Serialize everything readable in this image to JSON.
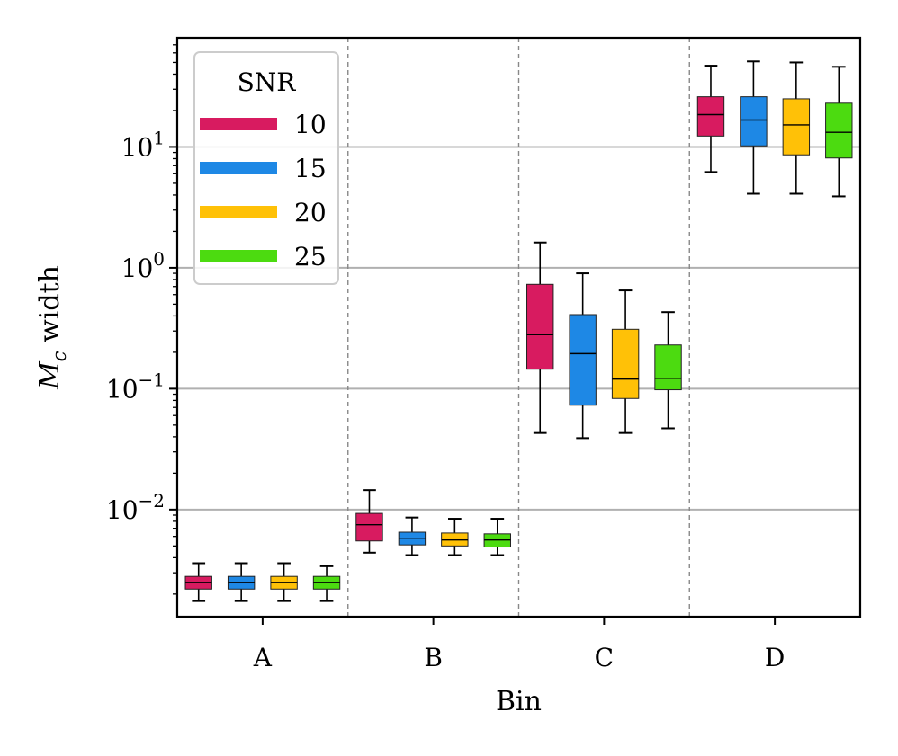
{
  "chart_data": {
    "type": "box",
    "title": "",
    "xlabel": "Bin",
    "ylabel": "M_c width",
    "ylabel_symbol": "M",
    "ylabel_subscript": "c",
    "ylabel_rest": " width",
    "yscale": "log",
    "ylim": [
      0.0013,
      80
    ],
    "categories": [
      "A",
      "B",
      "C",
      "D"
    ],
    "y_ticks": [
      {
        "value": 0.01,
        "base": "10",
        "exp": "−2"
      },
      {
        "value": 0.1,
        "base": "10",
        "exp": "−1"
      },
      {
        "value": 1,
        "base": "10",
        "exp": "0"
      },
      {
        "value": 10,
        "base": "10",
        "exp": "1"
      }
    ],
    "grid": "horizontal-major",
    "legend": {
      "title": "SNR",
      "position": "top-left"
    },
    "series": [
      {
        "name": "10",
        "color": "#d81b60",
        "boxes": [
          {
            "whislo": 0.00175,
            "q1": 0.0022,
            "med": 0.0025,
            "q3": 0.0028,
            "whishi": 0.0036
          },
          {
            "whislo": 0.0044,
            "q1": 0.0055,
            "med": 0.0075,
            "q3": 0.0093,
            "whishi": 0.0145
          },
          {
            "whislo": 0.043,
            "q1": 0.145,
            "med": 0.28,
            "q3": 0.73,
            "whishi": 1.62
          },
          {
            "whislo": 6.2,
            "q1": 12.3,
            "med": 18.5,
            "q3": 26,
            "whishi": 47
          }
        ]
      },
      {
        "name": "15",
        "color": "#1e88e5",
        "boxes": [
          {
            "whislo": 0.00175,
            "q1": 0.0022,
            "med": 0.0025,
            "q3": 0.0028,
            "whishi": 0.0036
          },
          {
            "whislo": 0.0042,
            "q1": 0.0051,
            "med": 0.0058,
            "q3": 0.0065,
            "whishi": 0.0086
          },
          {
            "whislo": 0.039,
            "q1": 0.073,
            "med": 0.195,
            "q3": 0.41,
            "whishi": 0.9
          },
          {
            "whislo": 4.1,
            "q1": 10.2,
            "med": 16.7,
            "q3": 26,
            "whishi": 51
          }
        ]
      },
      {
        "name": "20",
        "color": "#ffc107",
        "boxes": [
          {
            "whislo": 0.00175,
            "q1": 0.0022,
            "med": 0.0025,
            "q3": 0.0028,
            "whishi": 0.0036
          },
          {
            "whislo": 0.0042,
            "q1": 0.005,
            "med": 0.0056,
            "q3": 0.0064,
            "whishi": 0.0084
          },
          {
            "whislo": 0.043,
            "q1": 0.083,
            "med": 0.12,
            "q3": 0.31,
            "whishi": 0.65
          },
          {
            "whislo": 4.1,
            "q1": 8.6,
            "med": 15.2,
            "q3": 25,
            "whishi": 50
          }
        ]
      },
      {
        "name": "25",
        "color": "#4cdb10",
        "boxes": [
          {
            "whislo": 0.00175,
            "q1": 0.0022,
            "med": 0.0025,
            "q3": 0.0028,
            "whishi": 0.0034
          },
          {
            "whislo": 0.0042,
            "q1": 0.0049,
            "med": 0.0056,
            "q3": 0.0063,
            "whishi": 0.0084
          },
          {
            "whislo": 0.047,
            "q1": 0.098,
            "med": 0.122,
            "q3": 0.23,
            "whishi": 0.43
          },
          {
            "whislo": 3.9,
            "q1": 8.1,
            "med": 13.2,
            "q3": 23,
            "whishi": 46
          }
        ]
      }
    ]
  }
}
